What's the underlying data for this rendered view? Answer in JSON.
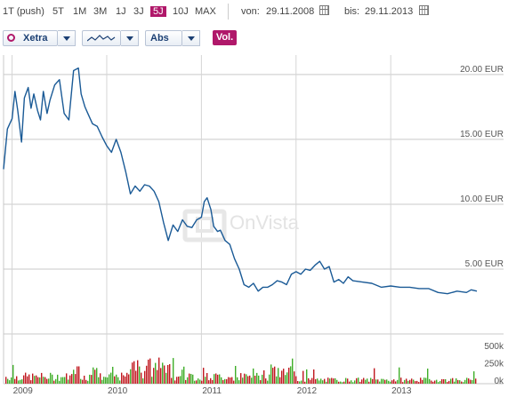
{
  "toolbar": {
    "ranges": [
      "1T (push)",
      "5T",
      "1M",
      "3M",
      "1J",
      "3J",
      "5J",
      "10J",
      "MAX"
    ],
    "active_range": "5J",
    "from_label": "von:",
    "from_value": "29.11.2008",
    "to_label": "bis:",
    "to_value": "29.11.2013"
  },
  "controls": {
    "exchange": "Xetra",
    "scale": "Abs",
    "volume_button": "Vol."
  },
  "watermark": "OnVista",
  "colors": {
    "accent": "#b0186a",
    "line": "#1a5a96",
    "vol_up": "#3fae29",
    "vol_down": "#c0171f"
  },
  "chart_data": {
    "type": "line",
    "y_axis": {
      "ticks": [
        5,
        10,
        15,
        20
      ],
      "tick_labels": [
        "5.00 EUR",
        "10.00 EUR",
        "15.00 EUR",
        "20.00 EUR"
      ],
      "ylim": [
        0,
        21.5
      ]
    },
    "x_axis": {
      "tick_labels": [
        "2009",
        "2010",
        "2011",
        "2012",
        "2013"
      ],
      "xlim": [
        2008.91,
        2013.91
      ]
    },
    "volume_axis": {
      "tick_labels": [
        "500k",
        "250k",
        "0k"
      ],
      "ylim": [
        0,
        600
      ]
    },
    "series": [
      {
        "x": [
          2008.91,
          2008.95,
          2009.0,
          2009.03,
          2009.06,
          2009.1,
          2009.13,
          2009.17,
          2009.2,
          2009.23,
          2009.27,
          2009.3,
          2009.33,
          2009.37,
          2009.4,
          2009.45,
          2009.5,
          2009.55,
          2009.6,
          2009.65,
          2009.7,
          2009.73,
          2009.77,
          2009.8,
          2009.85,
          2009.9,
          2009.95,
          2010.0,
          2010.05,
          2010.1,
          2010.15,
          2010.2,
          2010.25,
          2010.3,
          2010.35,
          2010.4,
          2010.45,
          2010.5,
          2010.55,
          2010.6,
          2010.65,
          2010.7,
          2010.75,
          2010.8,
          2010.85,
          2010.9,
          2010.95,
          2011.0,
          2011.03,
          2011.06,
          2011.1,
          2011.13,
          2011.17,
          2011.2,
          2011.25,
          2011.3,
          2011.35,
          2011.4,
          2011.45,
          2011.5,
          2011.55,
          2011.6,
          2011.65,
          2011.7,
          2011.75,
          2011.8,
          2011.85,
          2011.9,
          2011.95,
          2012.0,
          2012.05,
          2012.1,
          2012.15,
          2012.2,
          2012.25,
          2012.3,
          2012.35,
          2012.4,
          2012.45,
          2012.5,
          2012.55,
          2012.6,
          2012.7,
          2012.8,
          2012.9,
          2013.0,
          2013.1,
          2013.2,
          2013.3,
          2013.4,
          2013.5,
          2013.6,
          2013.7,
          2013.8,
          2013.85,
          2013.91
        ],
        "y": [
          12.7,
          15.8,
          16.6,
          18.7,
          17.2,
          14.8,
          18.2,
          19.0,
          17.4,
          18.5,
          17.2,
          16.5,
          18.7,
          17.0,
          18.0,
          19.2,
          19.6,
          17.0,
          16.5,
          20.3,
          20.5,
          18.5,
          17.5,
          17.0,
          16.2,
          16.0,
          15.2,
          14.5,
          14.0,
          15.0,
          14.0,
          12.5,
          10.8,
          11.4,
          11.0,
          11.5,
          11.4,
          11.0,
          10.2,
          8.6,
          7.2,
          8.4,
          7.9,
          8.8,
          8.3,
          8.2,
          8.8,
          9.0,
          10.2,
          10.5,
          9.6,
          8.3,
          7.9,
          8.0,
          7.2,
          6.9,
          5.8,
          5.0,
          3.8,
          3.6,
          3.9,
          3.3,
          3.6,
          3.6,
          3.8,
          4.1,
          4.0,
          3.8,
          4.6,
          4.8,
          4.6,
          5.0,
          4.9,
          5.3,
          5.6,
          5.0,
          5.2,
          4.0,
          4.2,
          3.9,
          4.4,
          4.1,
          4.0,
          3.9,
          3.6,
          3.7,
          3.6,
          3.6,
          3.5,
          3.5,
          3.2,
          3.1,
          3.3,
          3.2,
          3.4,
          3.3
        ]
      }
    ],
    "volume": {
      "description": "daily volume bars, green=up, red=down",
      "max_approx": 560
    }
  }
}
